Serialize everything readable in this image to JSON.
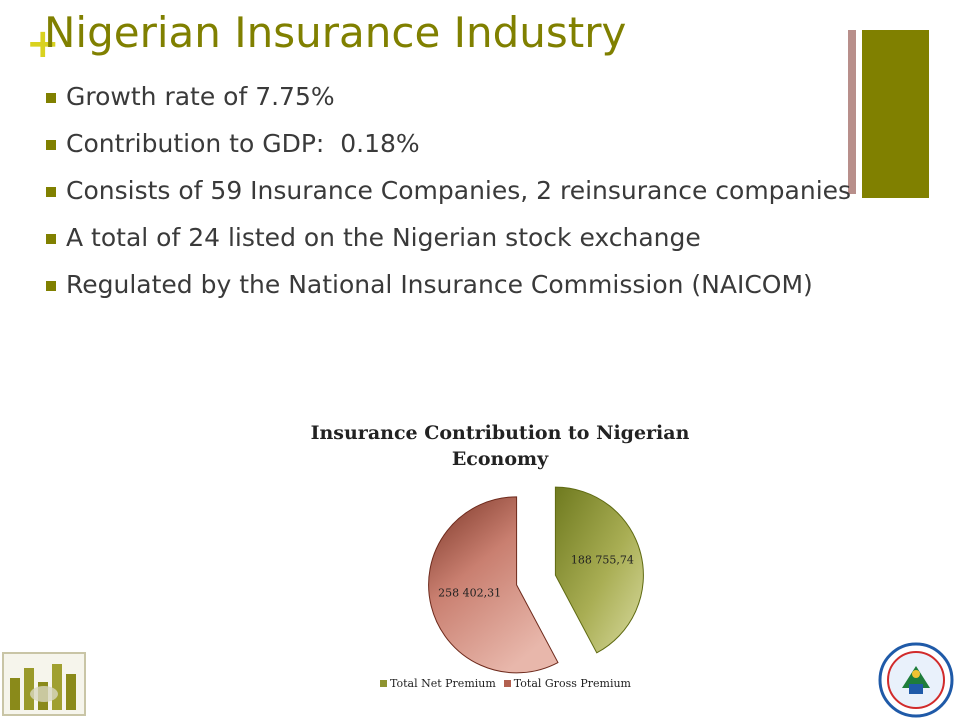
{
  "slide": {
    "title": "Nigerian Insurance Industry",
    "plus_glyph": "+",
    "bullets": [
      "Growth rate of 7.75%",
      "Contribution to GDP:  0.18%",
      "Consists of 59 Insurance Companies, 2 reinsurance companies",
      "A total of 24 listed on the Nigerian stock exchange",
      "Regulated by the National Insurance Commission (NAICOM)"
    ],
    "accent_color": "#808000",
    "secondary_color": "#b88f8b"
  },
  "chart_data": {
    "type": "pie",
    "title": "Insurance Contribution to Nigerian Economy",
    "series": [
      {
        "name": "Total Net Premium",
        "value": 188755.74,
        "label": "188 755,74",
        "color": "#a3a33a"
      },
      {
        "name": "Total Gross Premium",
        "value": 258402.31,
        "label": "258 402,31",
        "color": "#c97f70"
      }
    ],
    "legend_placement": "bottom"
  },
  "logos": {
    "left": "bar-chart-logo",
    "right": "institute-seal-logo"
  }
}
